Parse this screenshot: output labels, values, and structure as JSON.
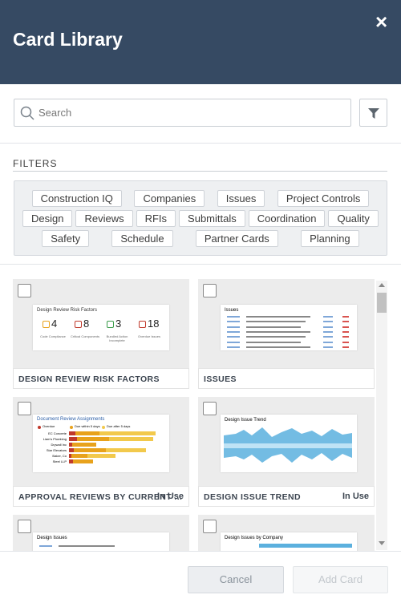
{
  "header": {
    "title": "Card Library",
    "close": "×"
  },
  "search": {
    "placeholder": "Search"
  },
  "filters": {
    "heading": "FILTERS",
    "chip_rows": [
      [
        "Construction IQ",
        "Companies",
        "Issues",
        "Project Controls"
      ],
      [
        "Design",
        "Reviews",
        "RFIs",
        "Submittals",
        "Coordination",
        "Quality"
      ],
      [
        "Safety",
        "Schedule",
        "Partner Cards",
        "Planning"
      ]
    ]
  },
  "cards": [
    {
      "label": "DESIGN REVIEW RISK FACTORS",
      "thumbnail": {
        "title": "Design Review Risk Factors",
        "stats": [
          4,
          8,
          3,
          18
        ],
        "stat_labels": [
          "Code Compliance",
          "Critical Components",
          "Bundled Action Incomplete",
          "Overdue Issues"
        ]
      }
    },
    {
      "label": "ISSUES",
      "thumbnail": {
        "title": "Issues"
      }
    },
    {
      "label": "APPROVAL REVIEWS BY CURRENT ...",
      "status": "In Use",
      "thumbnail": {
        "title": "Document Review Assignments",
        "legend": [
          "Overdue",
          "Due within 5 days",
          "Due after 5 days"
        ],
        "categories": [
          "EC Concrete",
          "Liam's Plumbing",
          "Drywall Inc",
          "Star Elevators",
          "Baker, Co",
          "Steel LLP"
        ]
      }
    },
    {
      "label": "DESIGN ISSUE TREND",
      "status": "In Use",
      "thumbnail": {
        "title": "Design Issue Trend"
      }
    },
    {
      "label": "",
      "thumbnail": {
        "title": "Design Issues"
      }
    },
    {
      "label": "",
      "thumbnail": {
        "title": "Design Issues by Company"
      }
    }
  ],
  "footer": {
    "cancel": "Cancel",
    "add": "Add Card"
  }
}
